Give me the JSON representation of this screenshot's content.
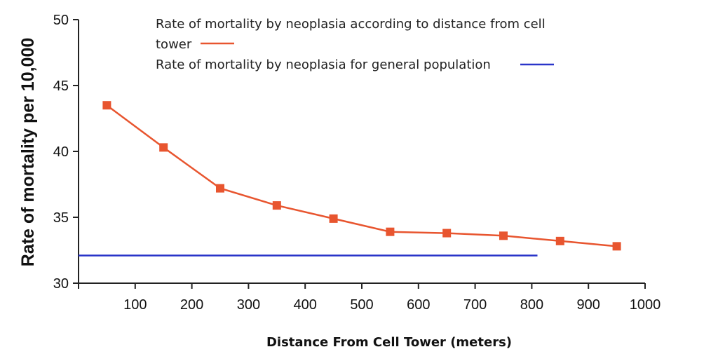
{
  "chart_data": {
    "type": "line",
    "title": "",
    "xlabel": "Distance From Cell Tower (meters)",
    "ylabel": "Rate of mortality per 10,000",
    "xlim": [
      0,
      1000
    ],
    "ylim": [
      30,
      50
    ],
    "x_ticks": [
      100,
      200,
      300,
      400,
      500,
      600,
      700,
      800,
      900,
      1000
    ],
    "y_ticks": [
      30,
      35,
      40,
      45,
      50
    ],
    "grid": false,
    "legend_position": "top",
    "series": [
      {
        "name": "Rate of mortality by neoplasia according to distance from cell tower",
        "legend_lines": [
          "Rate of mortality by neoplasia according to distance from cell",
          "tower"
        ],
        "color": "#e8552f",
        "marker": "square",
        "x": [
          50,
          150,
          250,
          350,
          450,
          550,
          650,
          750,
          850,
          950
        ],
        "y": [
          43.5,
          40.3,
          37.2,
          35.9,
          34.9,
          33.9,
          33.8,
          33.6,
          33.2,
          32.8
        ]
      },
      {
        "name": "Rate of mortality by neoplasia for general population",
        "legend_lines": [
          "Rate of mortality by neoplasia for general population"
        ],
        "color": "#2a35c9",
        "marker": "none",
        "x": [
          0,
          810
        ],
        "y": [
          32.1,
          32.1
        ]
      }
    ]
  }
}
